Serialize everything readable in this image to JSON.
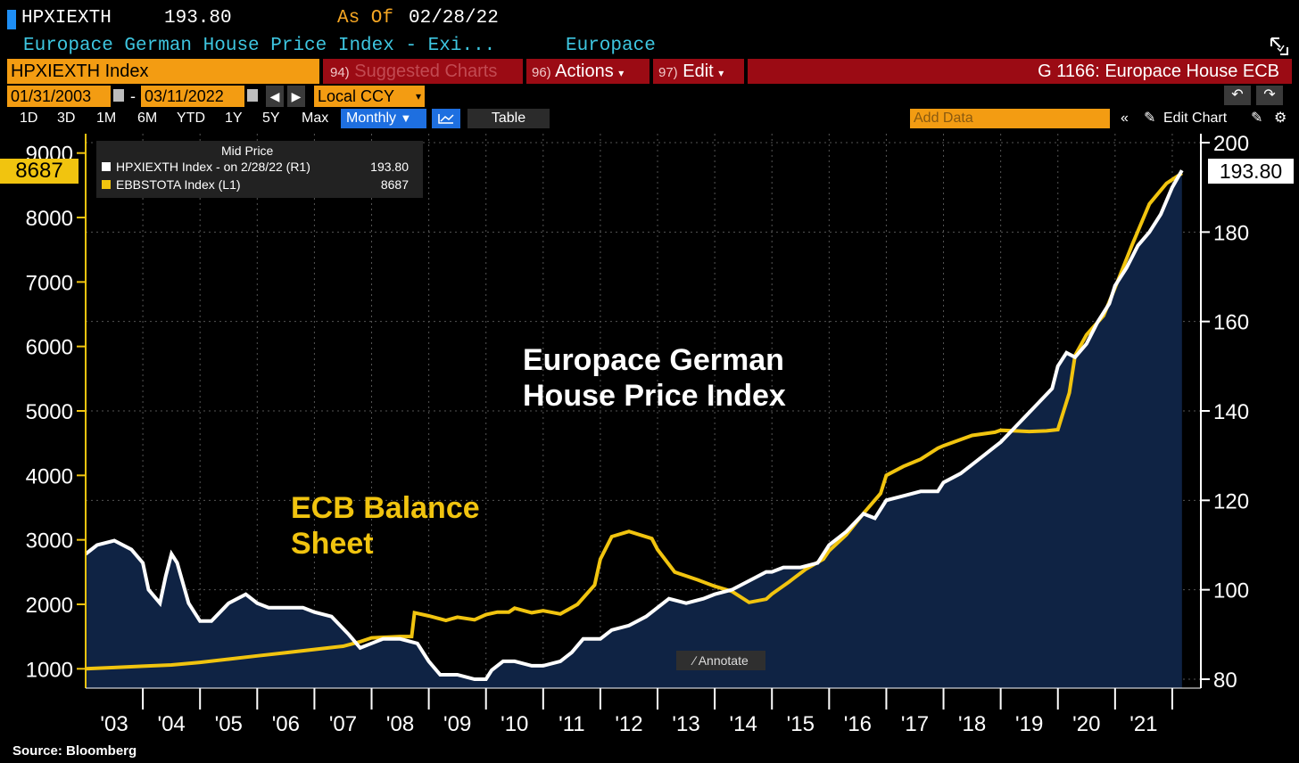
{
  "header": {
    "ticker": "HPXIEXTH",
    "price": "193.80",
    "as_of_label": "As Of",
    "as_of_date": "02/28/22",
    "name": "Europace German House Price Index - Exi...",
    "source": "Europace"
  },
  "toolbar": {
    "index_field": "HPXIEXTH Index",
    "suggested_num": "94)",
    "suggested_label": "Suggested Charts",
    "actions_num": "96)",
    "actions_label": "Actions",
    "edit_num": "97)",
    "edit_label": "Edit",
    "chart_title": "G 1166: Europace House ECB",
    "start_date": "01/31/2003",
    "end_date": "03/11/2022",
    "date_sep": "-",
    "currency": "Local CCY",
    "periods": [
      "1D",
      "3D",
      "1M",
      "6M",
      "YTD",
      "1Y",
      "5Y",
      "Max"
    ],
    "frequency": "Monthly",
    "table_label": "Table",
    "add_data_placeholder": "Add Data",
    "edit_chart_label": "Edit Chart"
  },
  "legend": {
    "header": "Mid Price",
    "rows": [
      {
        "label": "HPXIEXTH Index -  on 2/28/22  (R1)",
        "value": "193.80",
        "color": "#ffffff"
      },
      {
        "label": "EBBSTOTA Index  (L1)",
        "value": "8687",
        "color": "#f1c40f"
      }
    ]
  },
  "last_values": {
    "left": "8687",
    "right": "193.80"
  },
  "annotate_label": "Annotate",
  "source_text": "Source: Bloomberg",
  "chart_data": {
    "type": "line",
    "annotations": [
      "Europace German House Price Index",
      "ECB Balance Sheet"
    ],
    "x_ticks": [
      "'03",
      "'04",
      "'05",
      "'06",
      "'07",
      "'08",
      "'09",
      "'10",
      "'11",
      "'12",
      "'13",
      "'14",
      "'15",
      "'16",
      "'17",
      "'18",
      "'19",
      "'20",
      "'21"
    ],
    "left_axis": {
      "ticks": [
        1000,
        2000,
        3000,
        4000,
        5000,
        6000,
        7000,
        8000,
        9000
      ],
      "ylim": [
        700,
        9300
      ]
    },
    "right_axis": {
      "ticks": [
        80,
        100,
        120,
        140,
        160,
        180,
        200
      ],
      "ylim": [
        78,
        202
      ]
    },
    "grid": true,
    "colors": {
      "house": "#ffffff",
      "ecb": "#f1c40f",
      "fill": "#0f2344"
    },
    "series": [
      {
        "axis": "right",
        "points": [
          [
            2003.0,
            108
          ],
          [
            2003.2,
            110
          ],
          [
            2003.5,
            111
          ],
          [
            2003.8,
            109
          ],
          [
            2004.0,
            106
          ],
          [
            2004.1,
            100
          ],
          [
            2004.3,
            97
          ],
          [
            2004.4,
            103
          ],
          [
            2004.5,
            108
          ],
          [
            2004.6,
            106
          ],
          [
            2004.8,
            97
          ],
          [
            2005.0,
            93
          ],
          [
            2005.2,
            93
          ],
          [
            2005.5,
            97
          ],
          [
            2005.8,
            99
          ],
          [
            2006.0,
            97
          ],
          [
            2006.2,
            96
          ],
          [
            2006.5,
            96
          ],
          [
            2006.8,
            96
          ],
          [
            2007.0,
            95
          ],
          [
            2007.3,
            94
          ],
          [
            2007.6,
            90
          ],
          [
            2007.8,
            87
          ],
          [
            2008.0,
            88
          ],
          [
            2008.2,
            89
          ],
          [
            2008.5,
            89
          ],
          [
            2008.8,
            88
          ],
          [
            2009.0,
            84
          ],
          [
            2009.2,
            81
          ],
          [
            2009.5,
            81
          ],
          [
            2009.8,
            80
          ],
          [
            2010.0,
            80
          ],
          [
            2010.1,
            82
          ],
          [
            2010.3,
            84
          ],
          [
            2010.5,
            84
          ],
          [
            2010.8,
            83
          ],
          [
            2011.0,
            83
          ],
          [
            2011.3,
            84
          ],
          [
            2011.5,
            86
          ],
          [
            2011.7,
            89
          ],
          [
            2012.0,
            89
          ],
          [
            2012.2,
            91
          ],
          [
            2012.5,
            92
          ],
          [
            2012.8,
            94
          ],
          [
            2013.0,
            96
          ],
          [
            2013.2,
            98
          ],
          [
            2013.5,
            97
          ],
          [
            2013.8,
            98
          ],
          [
            2014.0,
            99
          ],
          [
            2014.3,
            100
          ],
          [
            2014.6,
            102
          ],
          [
            2014.9,
            104
          ],
          [
            2015.0,
            104
          ],
          [
            2015.2,
            105
          ],
          [
            2015.5,
            105
          ],
          [
            2015.8,
            106
          ],
          [
            2016.0,
            110
          ],
          [
            2016.3,
            113
          ],
          [
            2016.6,
            117
          ],
          [
            2016.8,
            116
          ],
          [
            2017.0,
            120
          ],
          [
            2017.3,
            121
          ],
          [
            2017.6,
            122
          ],
          [
            2017.9,
            122
          ],
          [
            2018.0,
            124
          ],
          [
            2018.3,
            126
          ],
          [
            2018.6,
            129
          ],
          [
            2018.9,
            132
          ],
          [
            2019.0,
            133
          ],
          [
            2019.3,
            137
          ],
          [
            2019.6,
            141
          ],
          [
            2019.9,
            145
          ],
          [
            2020.0,
            150
          ],
          [
            2020.15,
            153
          ],
          [
            2020.3,
            152
          ],
          [
            2020.5,
            155
          ],
          [
            2020.7,
            160
          ],
          [
            2020.9,
            164
          ],
          [
            2021.0,
            168
          ],
          [
            2021.2,
            172
          ],
          [
            2021.4,
            177
          ],
          [
            2021.6,
            180
          ],
          [
            2021.8,
            184
          ],
          [
            2022.0,
            190
          ],
          [
            2022.17,
            193.8
          ]
        ]
      },
      {
        "axis": "left",
        "points": [
          [
            2003.0,
            1000
          ],
          [
            2003.5,
            1020
          ],
          [
            2004.0,
            1040
          ],
          [
            2004.5,
            1060
          ],
          [
            2005.0,
            1100
          ],
          [
            2005.5,
            1150
          ],
          [
            2006.0,
            1200
          ],
          [
            2006.5,
            1250
          ],
          [
            2007.0,
            1300
          ],
          [
            2007.5,
            1350
          ],
          [
            2007.8,
            1420
          ],
          [
            2008.0,
            1480
          ],
          [
            2008.5,
            1500
          ],
          [
            2008.7,
            1500
          ],
          [
            2008.75,
            1870
          ],
          [
            2009.0,
            1820
          ],
          [
            2009.3,
            1750
          ],
          [
            2009.5,
            1800
          ],
          [
            2009.8,
            1760
          ],
          [
            2010.0,
            1840
          ],
          [
            2010.2,
            1880
          ],
          [
            2010.4,
            1880
          ],
          [
            2010.5,
            1940
          ],
          [
            2010.8,
            1870
          ],
          [
            2011.0,
            1900
          ],
          [
            2011.3,
            1850
          ],
          [
            2011.6,
            2000
          ],
          [
            2011.9,
            2300
          ],
          [
            2012.0,
            2700
          ],
          [
            2012.2,
            3050
          ],
          [
            2012.5,
            3130
          ],
          [
            2012.9,
            3020
          ],
          [
            2013.0,
            2850
          ],
          [
            2013.3,
            2500
          ],
          [
            2013.7,
            2380
          ],
          [
            2014.0,
            2280
          ],
          [
            2014.3,
            2200
          ],
          [
            2014.6,
            2030
          ],
          [
            2014.9,
            2080
          ],
          [
            2015.0,
            2160
          ],
          [
            2015.3,
            2350
          ],
          [
            2015.6,
            2550
          ],
          [
            2015.9,
            2700
          ],
          [
            2016.0,
            2830
          ],
          [
            2016.3,
            3080
          ],
          [
            2016.6,
            3410
          ],
          [
            2016.9,
            3720
          ],
          [
            2017.0,
            4000
          ],
          [
            2017.3,
            4140
          ],
          [
            2017.6,
            4250
          ],
          [
            2017.9,
            4420
          ],
          [
            2018.0,
            4460
          ],
          [
            2018.5,
            4620
          ],
          [
            2018.9,
            4670
          ],
          [
            2019.0,
            4700
          ],
          [
            2019.5,
            4680
          ],
          [
            2019.8,
            4690
          ],
          [
            2020.0,
            4710
          ],
          [
            2020.2,
            5280
          ],
          [
            2020.3,
            5860
          ],
          [
            2020.5,
            6180
          ],
          [
            2020.8,
            6480
          ],
          [
            2021.0,
            6910
          ],
          [
            2021.3,
            7580
          ],
          [
            2021.6,
            8210
          ],
          [
            2021.9,
            8530
          ],
          [
            2022.17,
            8687
          ]
        ]
      }
    ]
  }
}
